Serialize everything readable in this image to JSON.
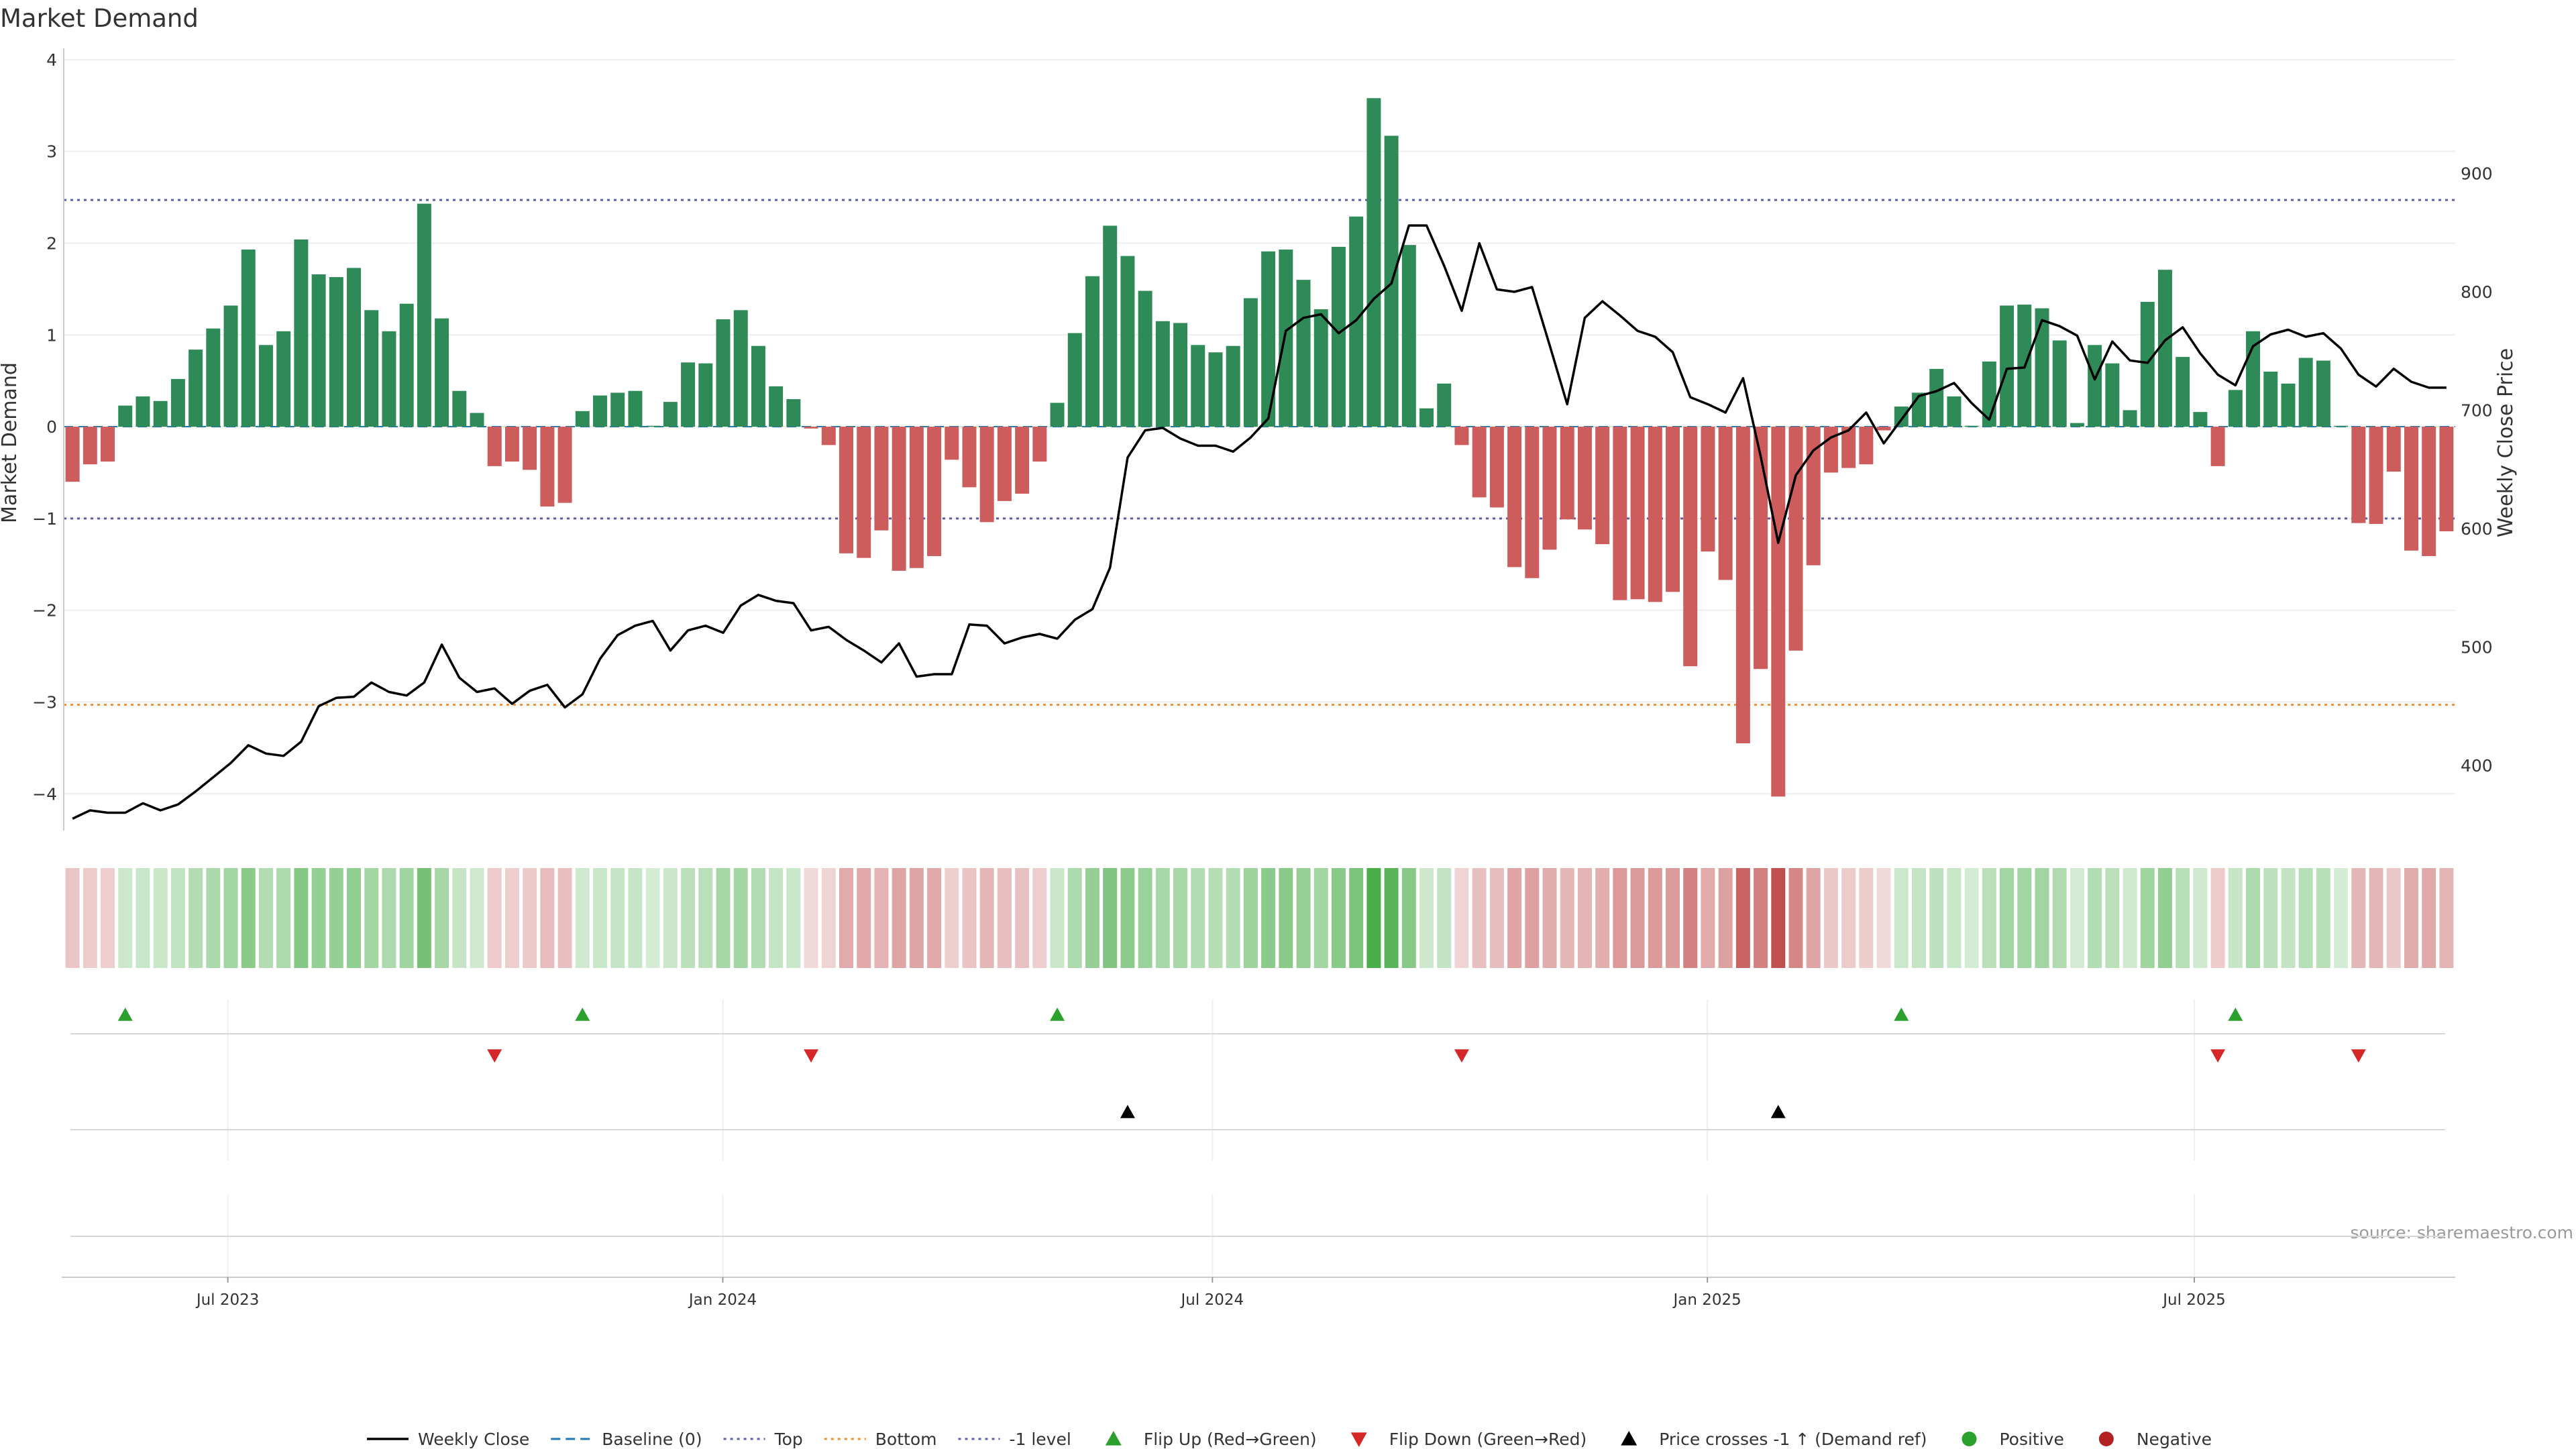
{
  "chart_data": {
    "type": "bar",
    "title": "Market Demand",
    "ylabel_left": "Market Demand",
    "ylabel_right": "Weekly Close Price",
    "left_ylim": [
      -4.4,
      4.05
    ],
    "left_yticks": [
      4,
      3,
      2,
      1,
      0,
      -1,
      -2,
      -3,
      -4
    ],
    "left_ytick_labels": [
      "4",
      "3",
      "2",
      "1",
      "0",
      "−1",
      "−2",
      "−3",
      "−4"
    ],
    "right_ylim": [
      345,
      1000
    ],
    "right_yticks": [
      900,
      800,
      700,
      600,
      500,
      400
    ],
    "right_ytick_labels": [
      "900",
      "800",
      "700",
      "600",
      "500",
      "400"
    ],
    "x_start_date": "2023-05-01",
    "x_end_date": "2025-10-06",
    "x_ticks": [
      {
        "label": "Jul 2023",
        "date": "2023-07-01"
      },
      {
        "label": "Jan 2024",
        "date": "2024-01-01"
      },
      {
        "label": "Jul 2024",
        "date": "2024-07-01"
      },
      {
        "label": "Jan 2025",
        "date": "2025-01-01"
      },
      {
        "label": "Jul 2025",
        "date": "2025-07-01"
      }
    ],
    "reference_lines": [
      {
        "name": "Top",
        "value": 2.47,
        "color": "#5b5ea6",
        "style": "dotted"
      },
      {
        "name": "-1 level",
        "value": -1.0,
        "color": "#5b5ea6",
        "style": "dotted"
      },
      {
        "name": "Bottom",
        "value": -3.03,
        "color": "#f28e2b",
        "style": "dotted"
      },
      {
        "name": "Baseline (0)",
        "value": 0,
        "color": "#1f77b4",
        "style": "dashed"
      }
    ],
    "grid": true,
    "demand": [
      -0.6,
      -0.41,
      -0.38,
      0.23,
      0.33,
      0.28,
      0.52,
      0.84,
      1.07,
      1.32,
      1.93,
      0.89,
      1.04,
      2.04,
      1.66,
      1.63,
      1.73,
      1.27,
      1.04,
      1.34,
      2.43,
      1.18,
      0.39,
      0.15,
      -0.43,
      -0.38,
      -0.47,
      -0.87,
      -0.83,
      0.17,
      0.34,
      0.37,
      0.39,
      0.01,
      0.27,
      0.7,
      0.69,
      1.17,
      1.27,
      0.88,
      0.44,
      0.3,
      -0.02,
      -0.2,
      -1.38,
      -1.43,
      -1.13,
      -1.57,
      -1.54,
      -1.41,
      -0.36,
      -0.66,
      -1.04,
      -0.81,
      -0.73,
      -0.38,
      0.26,
      1.02,
      1.64,
      2.19,
      1.86,
      1.48,
      1.15,
      1.13,
      0.89,
      0.81,
      0.88,
      1.4,
      1.91,
      1.93,
      1.6,
      1.28,
      1.96,
      2.29,
      3.58,
      3.17,
      1.98,
      0.2,
      0.47,
      -0.2,
      -0.77,
      -0.88,
      -1.53,
      -1.65,
      -1.34,
      -1.01,
      -1.12,
      -1.28,
      -1.89,
      -1.88,
      -1.91,
      -1.8,
      -2.61,
      -1.36,
      -1.67,
      -3.45,
      -2.64,
      -4.03,
      -2.44,
      -1.51,
      -0.5,
      -0.45,
      -0.41,
      -0.04,
      0.22,
      0.37,
      0.63,
      0.33,
      0.01,
      0.71,
      1.32,
      1.33,
      1.29,
      0.94,
      0.04,
      0.89,
      0.69,
      0.18,
      1.36,
      1.71,
      0.76,
      0.16,
      -0.43,
      0.4,
      1.04,
      0.6,
      0.47,
      0.75,
      0.72,
      0.01,
      -1.05,
      -1.06,
      -0.49,
      -1.35,
      -1.41,
      -1.14
    ],
    "weekly_close": [
      355,
      362,
      360,
      360,
      368,
      362,
      367,
      378,
      390,
      402,
      417,
      410,
      408,
      420,
      450,
      457,
      458,
      470,
      462,
      459,
      470,
      502,
      474,
      462,
      465,
      452,
      463,
      468,
      449,
      460,
      490,
      510,
      518,
      522,
      497,
      514,
      518,
      512,
      535,
      544,
      539,
      537,
      514,
      517,
      506,
      497,
      487,
      503,
      475,
      477,
      477,
      519,
      518,
      503,
      508,
      511,
      507,
      523,
      532,
      567,
      660,
      683,
      685,
      676,
      670,
      670,
      665,
      677,
      693,
      767,
      778,
      781,
      765,
      776,
      794,
      807,
      856,
      856,
      822,
      784,
      841,
      802,
      800,
      804,
      755,
      705,
      778,
      792,
      780,
      767,
      762,
      749,
      711,
      705,
      698,
      727,
      661,
      588,
      645,
      666,
      677,
      683,
      698,
      672,
      692,
      712,
      716,
      723,
      706,
      692,
      735,
      736,
      776,
      771,
      763,
      726,
      758,
      742,
      740,
      759,
      770,
      748,
      730,
      721,
      754,
      764,
      768,
      762,
      765,
      752,
      730,
      720,
      735,
      724,
      719,
      719
    ],
    "price_crosses_above_minus1_index": [
      60,
      97
    ],
    "legend_items": [
      {
        "label": "Weekly Close",
        "kind": "line",
        "color": "#000000"
      },
      {
        "label": "Baseline (0)",
        "kind": "dash",
        "color": "#1f77b4"
      },
      {
        "label": "Top",
        "kind": "dot",
        "color": "#5b5ea6"
      },
      {
        "label": "Bottom",
        "kind": "dot",
        "color": "#f28e2b"
      },
      {
        "label": "-1 level",
        "kind": "dot",
        "color": "#5b5ea6"
      },
      {
        "label": "Flip Up (Red→Green)",
        "kind": "tri-up",
        "color": "#2ca02c"
      },
      {
        "label": "Flip Down (Green→Red)",
        "kind": "tri-down",
        "color": "#d62728"
      },
      {
        "label": "Price crosses -1 ↑ (Demand ref)",
        "kind": "tri-up",
        "color": "#000000"
      },
      {
        "label": "Positive",
        "kind": "circle",
        "color": "#2ca02c"
      },
      {
        "label": "Negative",
        "kind": "circle",
        "color": "#b22222"
      }
    ],
    "source": "source: sharemaestro.com"
  },
  "colors": {
    "positive_bar": "#2e8b57",
    "negative_bar": "#cd5c5c",
    "price_line": "#000000",
    "grid": "#eeeeee"
  }
}
